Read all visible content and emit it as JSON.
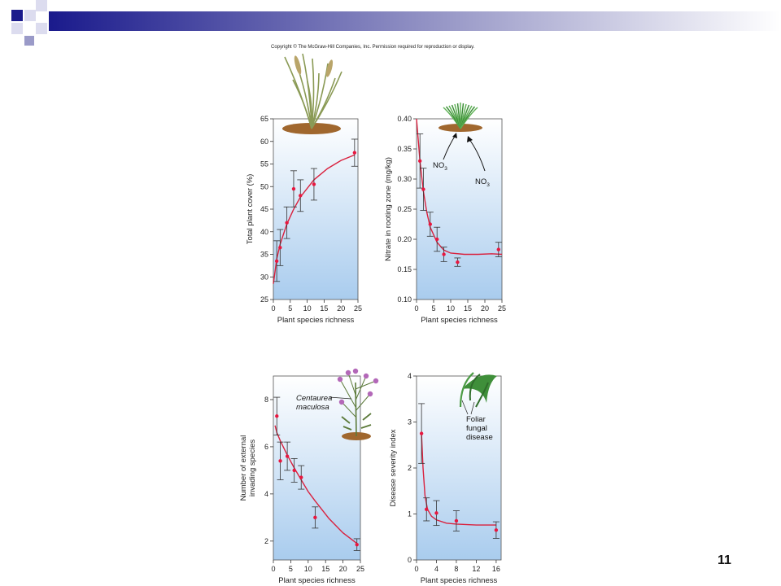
{
  "slide": {
    "copyright": "Copyright © The McGraw-Hill Companies, Inc. Permission required for reproduction or display.",
    "page_number": "11",
    "colors": {
      "header_dark": "#1a1a8c",
      "header_mid": "#9a9ac8",
      "header_light": "#dcdcef"
    }
  },
  "chart_data": [
    {
      "type": "scatter",
      "xlabel": "Plant species richness",
      "ylabel": "Total plant cover (%)",
      "xlim": [
        0,
        25
      ],
      "ylim": [
        25,
        65
      ],
      "x_ticks": [
        "0",
        "5",
        "10",
        "15",
        "20",
        "25"
      ],
      "y_ticks": [
        "25",
        "30",
        "35",
        "40",
        "45",
        "50",
        "55",
        "60",
        "65"
      ],
      "points": [
        {
          "x": 1,
          "y": 33.5,
          "err": 4.5
        },
        {
          "x": 2,
          "y": 36.5,
          "err": 4.0
        },
        {
          "x": 4,
          "y": 42,
          "err": 3.5
        },
        {
          "x": 6,
          "y": 49.5,
          "err": 4.0
        },
        {
          "x": 8,
          "y": 48,
          "err": 3.5
        },
        {
          "x": 12,
          "y": 50.5,
          "err": 3.5
        },
        {
          "x": 24,
          "y": 57.5,
          "err": 3.0
        }
      ],
      "fit": [
        [
          0,
          28.5
        ],
        [
          1,
          34
        ],
        [
          2,
          37.2
        ],
        [
          4,
          41.7
        ],
        [
          6,
          45
        ],
        [
          8,
          47.7
        ],
        [
          12,
          51.5
        ],
        [
          16,
          54
        ],
        [
          20,
          55.8
        ],
        [
          24,
          57
        ]
      ],
      "annotations": [],
      "illustration": "grass-icon",
      "colors": {
        "point": "#e8173f",
        "fit": "#d9213e",
        "error_bar": "#333333",
        "plot_bg_top": "#ffffff",
        "plot_bg_bottom": "#a9ccee"
      }
    },
    {
      "type": "scatter",
      "xlabel": "Plant species richness",
      "ylabel": "Nitrate in rooting zone (mg/kg)",
      "xlim": [
        0,
        25
      ],
      "ylim": [
        0.1,
        0.4
      ],
      "x_ticks": [
        "0",
        "5",
        "10",
        "15",
        "20",
        "25"
      ],
      "y_ticks": [
        "0.10",
        "0.15",
        "0.20",
        "0.25",
        "0.30",
        "0.35",
        "0.40"
      ],
      "points": [
        {
          "x": 1,
          "y": 0.33,
          "err": 0.045
        },
        {
          "x": 2,
          "y": 0.283,
          "err": 0.035
        },
        {
          "x": 4,
          "y": 0.225,
          "err": 0.02
        },
        {
          "x": 6,
          "y": 0.2,
          "err": 0.02
        },
        {
          "x": 8,
          "y": 0.175,
          "err": 0.012
        },
        {
          "x": 12,
          "y": 0.162,
          "err": 0.007
        },
        {
          "x": 24,
          "y": 0.183,
          "err": 0.012
        }
      ],
      "fit": [
        [
          0,
          0.4
        ],
        [
          1,
          0.33
        ],
        [
          2,
          0.28
        ],
        [
          3,
          0.245
        ],
        [
          4,
          0.22
        ],
        [
          6,
          0.195
        ],
        [
          8,
          0.182
        ],
        [
          10,
          0.177
        ],
        [
          14,
          0.175
        ],
        [
          18,
          0.175
        ],
        [
          22,
          0.176
        ],
        [
          25,
          0.175
        ]
      ],
      "annotations": [
        "NO",
        "NO"
      ],
      "annotation_sub": "3",
      "illustration": "grass-clump-icon",
      "colors": {
        "point": "#e8173f",
        "fit": "#d9213e",
        "error_bar": "#333333",
        "plot_bg_top": "#ffffff",
        "plot_bg_bottom": "#a9ccee"
      }
    },
    {
      "type": "scatter",
      "xlabel": "Plant species richness",
      "ylabel_lines": [
        "Number of external",
        "invading species"
      ],
      "xlim": [
        0,
        25
      ],
      "ylim": [
        1.2,
        9
      ],
      "x_ticks": [
        "0",
        "5",
        "10",
        "15",
        "20",
        "25"
      ],
      "y_ticks": [
        "2",
        "4",
        "6",
        "8"
      ],
      "points": [
        {
          "x": 1,
          "y": 7.3,
          "err": 0.8
        },
        {
          "x": 2,
          "y": 5.4,
          "err": 0.8
        },
        {
          "x": 4,
          "y": 5.6,
          "err": 0.6
        },
        {
          "x": 6,
          "y": 5.0,
          "err": 0.5
        },
        {
          "x": 8,
          "y": 4.7,
          "err": 0.5
        },
        {
          "x": 12,
          "y": 3.0,
          "err": 0.45
        },
        {
          "x": 24,
          "y": 1.85,
          "err": 0.25
        }
      ],
      "fit": [
        [
          0.5,
          6.9
        ],
        [
          1,
          6.6
        ],
        [
          2,
          6.25
        ],
        [
          4,
          5.65
        ],
        [
          6,
          5.1
        ],
        [
          8,
          4.6
        ],
        [
          10,
          4.1
        ],
        [
          12,
          3.7
        ],
        [
          16,
          2.95
        ],
        [
          20,
          2.35
        ],
        [
          24,
          1.9
        ]
      ],
      "annotations": [
        "Centaurea",
        "maculosa"
      ],
      "illustration": "knapweed-flower-icon",
      "colors": {
        "point": "#e8173f",
        "fit": "#d9213e",
        "error_bar": "#333333",
        "plot_bg_top": "#ffffff",
        "plot_bg_bottom": "#a9ccee"
      }
    },
    {
      "type": "scatter",
      "xlabel": "Plant species richness",
      "ylabel": "Disease severity index",
      "xlim": [
        0,
        17
      ],
      "ylim": [
        0,
        4
      ],
      "x_ticks": [
        "0",
        "4",
        "8",
        "12",
        "16"
      ],
      "x_tick_values": [
        0,
        4,
        8,
        12,
        16
      ],
      "y_ticks": [
        "0",
        "1",
        "2",
        "3",
        "4"
      ],
      "points": [
        {
          "x": 1,
          "y": 2.75,
          "err": 0.65
        },
        {
          "x": 2,
          "y": 1.1,
          "err": 0.25
        },
        {
          "x": 4,
          "y": 1.02,
          "err": 0.27
        },
        {
          "x": 8,
          "y": 0.85,
          "err": 0.22
        },
        {
          "x": 16,
          "y": 0.65,
          "err": 0.18
        }
      ],
      "fit": [
        [
          1,
          2.75
        ],
        [
          1.3,
          2.0
        ],
        [
          1.7,
          1.4
        ],
        [
          2.2,
          1.1
        ],
        [
          3,
          0.95
        ],
        [
          4,
          0.87
        ],
        [
          6,
          0.8
        ],
        [
          8,
          0.78
        ],
        [
          12,
          0.76
        ],
        [
          16,
          0.76
        ]
      ],
      "annotations": [
        "Foliar",
        "fungal",
        "disease"
      ],
      "illustration": "leaf-icon",
      "colors": {
        "point": "#e8173f",
        "fit": "#d9213e",
        "error_bar": "#333333",
        "plot_bg_top": "#ffffff",
        "plot_bg_bottom": "#a9ccee"
      }
    }
  ]
}
